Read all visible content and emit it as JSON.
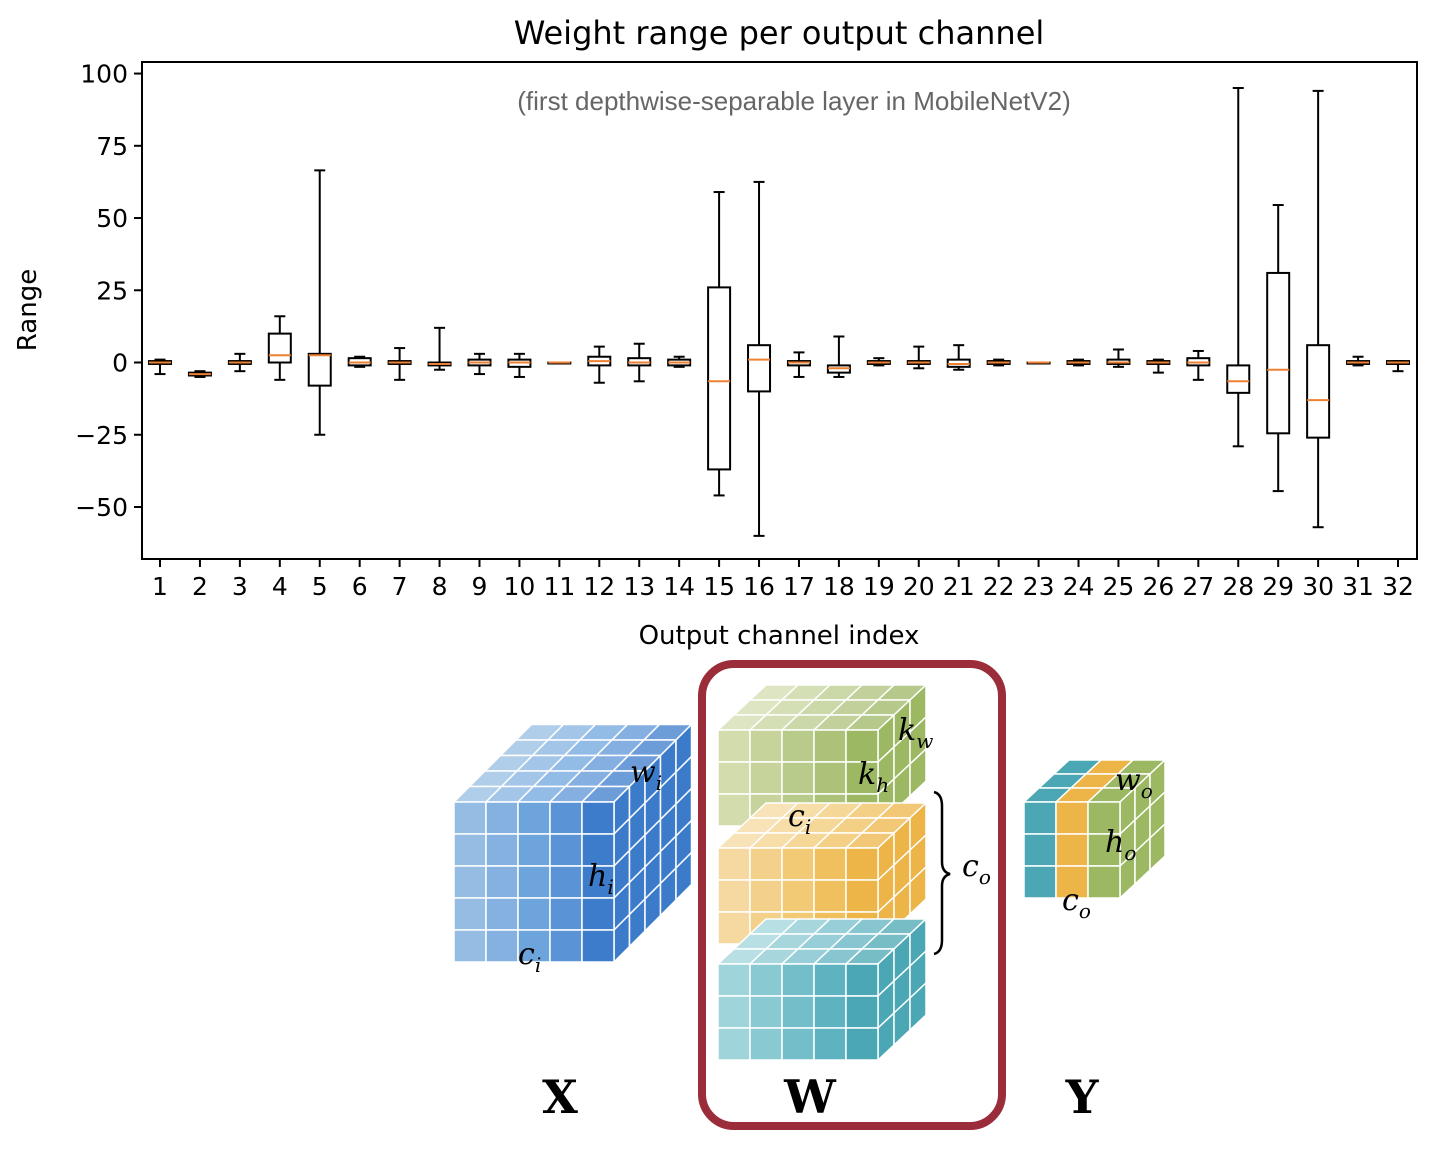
{
  "chart_data": {
    "type": "box",
    "title": "Weight range per output channel",
    "subtitle": "(first depthwise-separable layer in MobileNetV2)",
    "xlabel": "Output channel index",
    "ylabel": "Range",
    "ylim": [
      -68,
      104
    ],
    "yticks": [
      100,
      75,
      50,
      25,
      0,
      -25,
      -50
    ],
    "ytick_labels": [
      "100",
      "75",
      "50",
      "25",
      "0",
      "−25",
      "−50"
    ],
    "grid": false,
    "colors": {
      "box": "#000000",
      "median": "#ee8033"
    },
    "categories": [
      "1",
      "2",
      "3",
      "4",
      "5",
      "6",
      "7",
      "8",
      "9",
      "10",
      "11",
      "12",
      "13",
      "14",
      "15",
      "16",
      "17",
      "18",
      "19",
      "20",
      "21",
      "22",
      "23",
      "24",
      "25",
      "26",
      "27",
      "28",
      "29",
      "30",
      "31",
      "32"
    ],
    "boxes": [
      {
        "whislo": -4,
        "q1": -0.5,
        "med": 0,
        "q3": 0.5,
        "whishi": 1
      },
      {
        "whislo": -5,
        "q1": -4.5,
        "med": -4,
        "q3": -3.5,
        "whishi": -3
      },
      {
        "whislo": -3,
        "q1": -0.5,
        "med": 0,
        "q3": 0.5,
        "whishi": 3
      },
      {
        "whislo": -6,
        "q1": 0,
        "med": 2.5,
        "q3": 10,
        "whishi": 16
      },
      {
        "whislo": -25,
        "q1": -8,
        "med": 2.5,
        "q3": 3,
        "whishi": 66.5
      },
      {
        "whislo": -1.5,
        "q1": -1,
        "med": 0,
        "q3": 1.5,
        "whishi": 2
      },
      {
        "whislo": -6,
        "q1": -0.5,
        "med": 0,
        "q3": 0.5,
        "whishi": 5
      },
      {
        "whislo": -2.5,
        "q1": -1,
        "med": -0.5,
        "q3": 0,
        "whishi": 12
      },
      {
        "whislo": -4,
        "q1": -1,
        "med": 0,
        "q3": 1,
        "whishi": 3
      },
      {
        "whislo": -5,
        "q1": -1.5,
        "med": 0,
        "q3": 1,
        "whishi": 3
      },
      {
        "whislo": 0,
        "q1": 0,
        "med": 0,
        "q3": 0,
        "whishi": 0
      },
      {
        "whislo": -7,
        "q1": -1,
        "med": 0.5,
        "q3": 2,
        "whishi": 5.5
      },
      {
        "whislo": -6.5,
        "q1": -1,
        "med": 0,
        "q3": 1.5,
        "whishi": 6.5
      },
      {
        "whislo": -1.5,
        "q1": -1,
        "med": 0,
        "q3": 1,
        "whishi": 2
      },
      {
        "whislo": -46,
        "q1": -37,
        "med": -6.5,
        "q3": 26,
        "whishi": 59
      },
      {
        "whislo": -60,
        "q1": -10,
        "med": 1,
        "q3": 6,
        "whishi": 62.5
      },
      {
        "whislo": -5,
        "q1": -1,
        "med": 0,
        "q3": 0.5,
        "whishi": 3.5
      },
      {
        "whislo": -5,
        "q1": -3.5,
        "med": -2,
        "q3": -1,
        "whishi": 9
      },
      {
        "whislo": -1,
        "q1": -0.5,
        "med": 0,
        "q3": 0.5,
        "whishi": 1.5
      },
      {
        "whislo": -2,
        "q1": -0.5,
        "med": 0,
        "q3": 0.5,
        "whishi": 5.5
      },
      {
        "whislo": -2.5,
        "q1": -1.5,
        "med": -0.5,
        "q3": 1,
        "whishi": 6
      },
      {
        "whislo": -1,
        "q1": -0.5,
        "med": 0,
        "q3": 0.5,
        "whishi": 1
      },
      {
        "whislo": 0,
        "q1": 0,
        "med": 0,
        "q3": 0,
        "whishi": 0
      },
      {
        "whislo": -1,
        "q1": -0.5,
        "med": 0,
        "q3": 0.5,
        "whishi": 1
      },
      {
        "whislo": -1.5,
        "q1": -0.5,
        "med": 0,
        "q3": 1,
        "whishi": 4.5
      },
      {
        "whislo": -3.5,
        "q1": -0.5,
        "med": 0,
        "q3": 0.5,
        "whishi": 1
      },
      {
        "whislo": -6,
        "q1": -1,
        "med": 0,
        "q3": 1.5,
        "whishi": 4
      },
      {
        "whislo": -29,
        "q1": -10.5,
        "med": -6.5,
        "q3": -1,
        "whishi": 95
      },
      {
        "whislo": -44.5,
        "q1": -24.5,
        "med": -2.5,
        "q3": 31,
        "whishi": 54.5
      },
      {
        "whislo": -57,
        "q1": -26,
        "med": -13,
        "q3": 6,
        "whishi": 94
      },
      {
        "whislo": -1,
        "q1": -0.5,
        "med": 0,
        "q3": 0.5,
        "whishi": 2
      },
      {
        "whislo": -3,
        "q1": -0.5,
        "med": 0,
        "q3": 0.5,
        "whishi": 0.5
      }
    ]
  },
  "diagram": {
    "tensor_labels": {
      "x": "X",
      "w": "W",
      "y": "Y"
    },
    "x_labels": {
      "w": "w",
      "w_sub": "i",
      "h": "h",
      "h_sub": "i",
      "c": "c",
      "c_sub": "i"
    },
    "w_labels": {
      "kw": "k",
      "kw_sub": "w",
      "kh": "k",
      "kh_sub": "h",
      "c": "c",
      "c_sub": "i",
      "co": "c",
      "co_sub": "o"
    },
    "y_labels": {
      "w": "w",
      "w_sub": "o",
      "h": "h",
      "h_sub": "o",
      "c": "c",
      "c_sub": "o"
    },
    "colors": {
      "blue": [
        "#95bde3",
        "#84b1df",
        "#6ea4dc",
        "#5b94d6",
        "#3c7ccb"
      ],
      "green": [
        "#d2dcad",
        "#c6d49c",
        "#b9cb8a",
        "#adc279",
        "#9cb863"
      ],
      "orange": [
        "#f6d9a0",
        "#f4d18a",
        "#f2c974",
        "#f0c05f",
        "#edb447"
      ],
      "teal": [
        "#9fd4db",
        "#89c9d2",
        "#74bec9",
        "#5fb3c0",
        "#4aa7b3"
      ],
      "highlight_box": "#9b2c3a"
    }
  }
}
